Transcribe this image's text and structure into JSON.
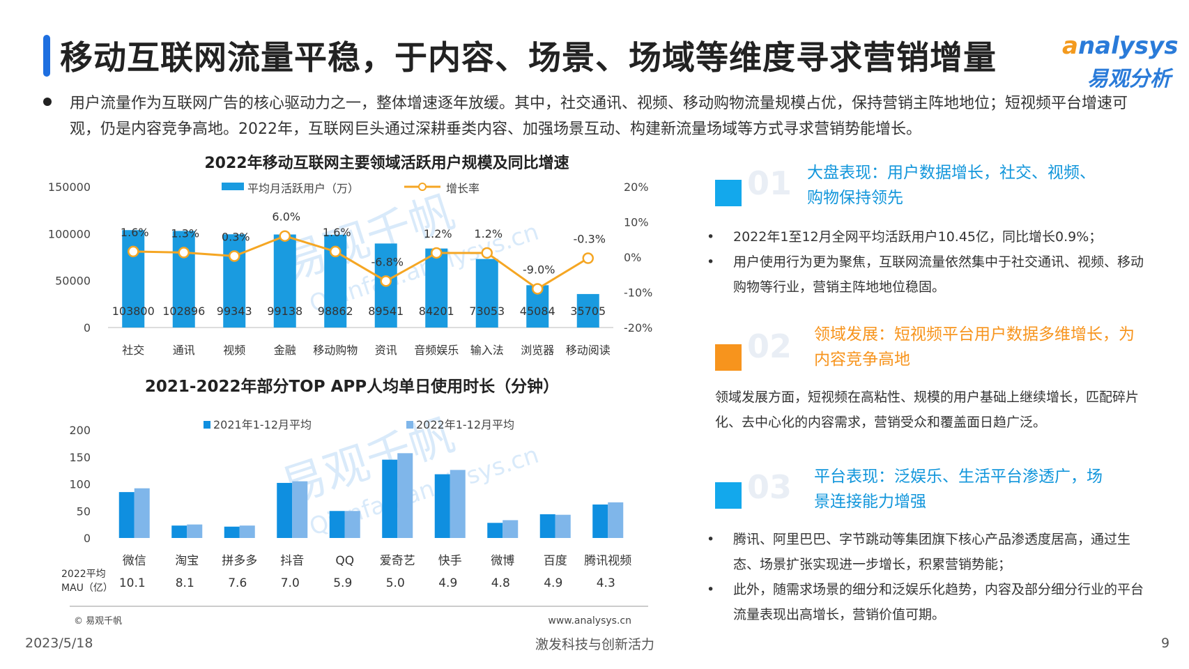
{
  "title": "移动互联网流量平稳，于内容、场景、场域等维度寻求营销增量",
  "logo": {
    "en_o": "a",
    "en_rest": "nalysys",
    "cn": "易观分析"
  },
  "summary": "用户流量作为互联网广告的核心驱动力之一，整体增速逐年放缓。其中，社交通讯、视频、移动购物流量规模占优，保持营销主阵地地位；短视频平台增速可观，仍是内容竞争高地。2022年，互联网巨头通过深耕垂类内容、加强场景互动、构建新流量场域等方式寻求营销势能增长。",
  "watermark": {
    "cn": "易观千帆",
    "en": "Qianfan.analysys.cn"
  },
  "chart_data": [
    {
      "type": "bar",
      "title": "2022年移动互联网主要领域活跃用户规模及同比增速",
      "categories": [
        "社交",
        "通讯",
        "视频",
        "金融",
        "移动购物",
        "资讯",
        "音频娱乐",
        "输入法",
        "浏览器",
        "移动阅读"
      ],
      "series": [
        {
          "name": "平均月活跃用户（万）",
          "type": "bar",
          "axis": "left",
          "values": [
            103800,
            102896,
            99343,
            99138,
            98862,
            89541,
            84201,
            73053,
            45084,
            35705
          ],
          "value_labels": [
            "103800",
            "102896",
            "99343",
            "99138",
            "98862",
            "89541",
            "84201",
            "73053",
            "45084",
            "35705"
          ]
        },
        {
          "name": "增长率",
          "type": "line",
          "axis": "right",
          "values": [
            1.6,
            1.3,
            0.3,
            6.0,
            1.6,
            -6.8,
            1.2,
            1.2,
            -9.0,
            -0.3
          ],
          "value_labels": [
            "1.6%",
            "1.3%",
            "0.3%",
            "6.0%",
            "1.6%",
            "-6.8%",
            "1.2%",
            "1.2%",
            "-9.0%",
            "-0.3%"
          ]
        }
      ],
      "y_left": {
        "min": 0,
        "max": 150000,
        "ticks": [
          0,
          50000,
          100000,
          150000
        ],
        "tick_labels": [
          "0",
          "50000",
          "100000",
          "150000"
        ]
      },
      "y_right": {
        "min": -20,
        "max": 20,
        "ticks": [
          -20,
          -10,
          0,
          10,
          20
        ],
        "tick_labels": [
          "-20%",
          "-10%",
          "0%",
          "10%",
          "20%"
        ]
      },
      "legend_position": "top",
      "grid": false
    },
    {
      "type": "bar",
      "title": "2021-2022年部分TOP APP人均单日使用时长（分钟）",
      "categories": [
        "微信",
        "淘宝",
        "拼多多",
        "抖音",
        "QQ",
        "爱奇艺",
        "快手",
        "微博",
        "百度",
        "腾讯视频"
      ],
      "series": [
        {
          "name": "2021年1-12月平均",
          "values": [
            85,
            23,
            21,
            102,
            50,
            145,
            118,
            28,
            44,
            62
          ]
        },
        {
          "name": "2022年1-12月平均",
          "values": [
            92,
            25,
            23,
            105,
            50,
            157,
            126,
            33,
            43,
            66
          ]
        }
      ],
      "ylim": [
        0,
        200
      ],
      "y_ticks": [
        0,
        50,
        100,
        150,
        200
      ],
      "y_tick_labels": [
        "0",
        "50",
        "100",
        "150",
        "200"
      ],
      "legend_position": "top",
      "grid": false,
      "mau_row_label_1": "2022平均",
      "mau_row_label_2": "MAU（亿）",
      "mau_values": [
        "10.1",
        "8.1",
        "7.6",
        "7.0",
        "5.9",
        "5.0",
        "4.9",
        "4.8",
        "4.9",
        "4.3"
      ]
    }
  ],
  "chart_source_left": "© 易观千帆",
  "chart_source_right": "www.analysys.cn",
  "right": {
    "sections": [
      {
        "number": "01",
        "color": "#13a8ec",
        "heading": "大盘表现：用户数据增长，社交、视频、购物保持领先",
        "bullets": [
          "2022年1至12月全网平均活跃用户10.45亿，同比增长0.9%；",
          "用户使用行为更为聚焦，互联网流量依然集中于社交通讯、视频、移动购物等行业，营销主阵地地位稳固。"
        ]
      },
      {
        "number": "02",
        "color": "#f7941d",
        "heading": "领域发展：短视频平台用户数据多维增长，为内容竞争高地",
        "paragraph": "领域发展方面，短视频在高粘性、规模的用户基础上继续增长，匹配碎片化、去中心化的内容需求，营销受众和覆盖面日趋广泛。"
      },
      {
        "number": "03",
        "color": "#13a8ec",
        "heading": "平台表现：泛娱乐、生活平台渗透广，场景连接能力增强",
        "bullets": [
          "腾讯、阿里巴巴、字节跳动等集团旗下核心产品渗透度居高，通过生态、场景扩张实现进一步增长，积累营销势能；",
          "此外，随需求场景的细分和泛娱乐化趋势，内容及部分细分行业的平台流量表现出高增长，营销价值可期。"
        ]
      }
    ]
  },
  "footer": {
    "date": "2023/5/18",
    "slogan": "激发科技与创新活力",
    "page": "9"
  }
}
